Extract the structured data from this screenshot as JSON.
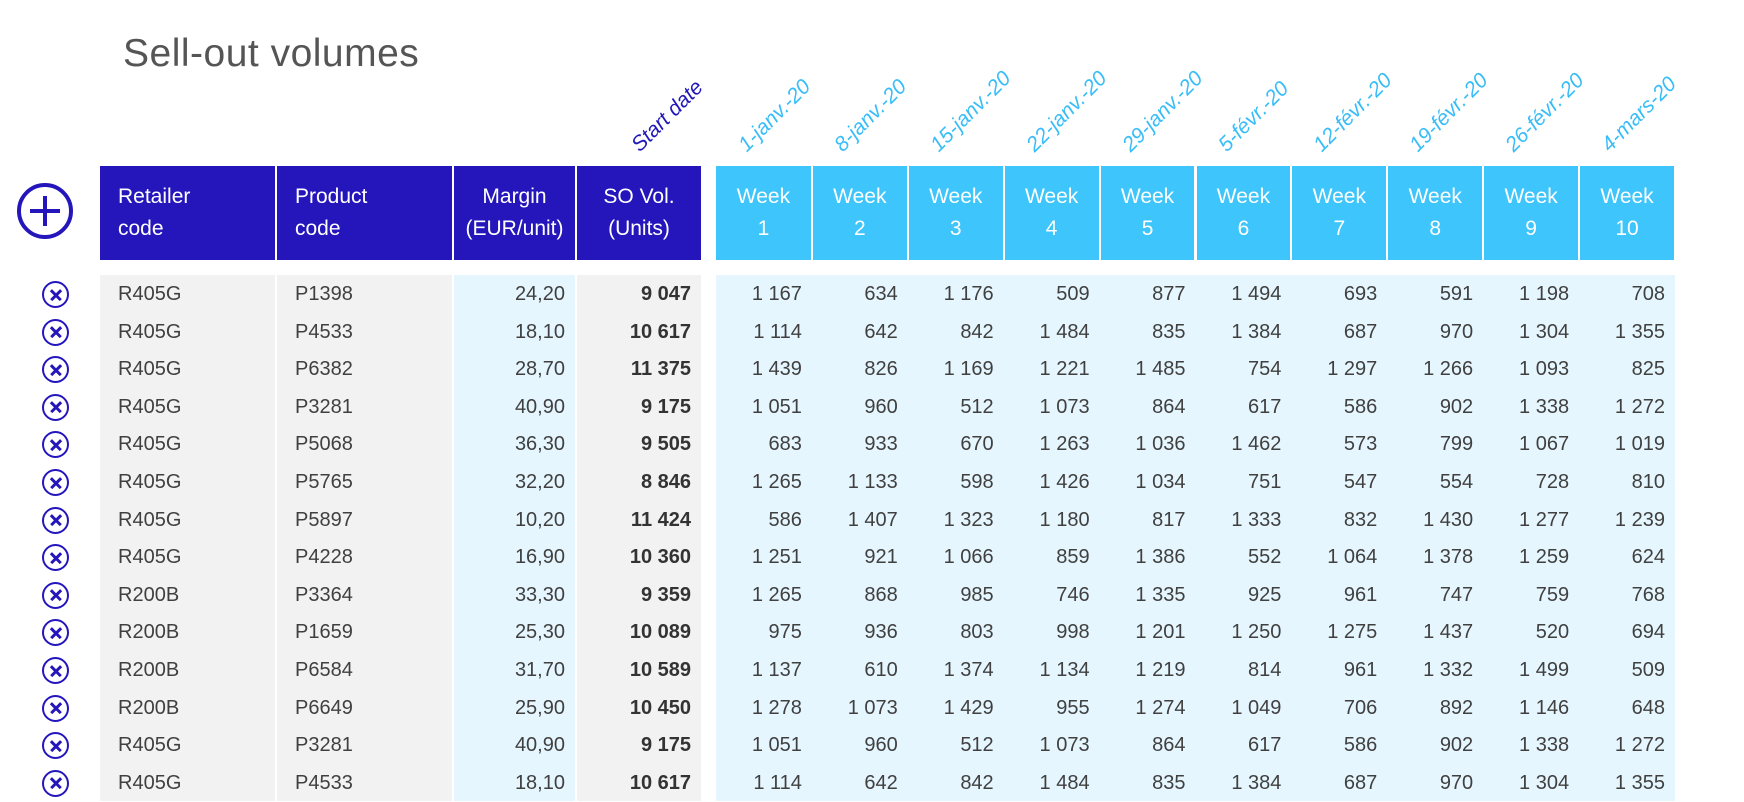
{
  "title": "Sell-out volumes",
  "start_label": "Start date",
  "headers": {
    "retailer": [
      "Retailer",
      "code"
    ],
    "product": [
      "Product",
      "code"
    ],
    "margin": [
      "Margin",
      "(EUR/unit)"
    ],
    "so_vol": [
      "SO Vol.",
      "(Units)"
    ]
  },
  "weeks": [
    {
      "date": "1-janv.-20",
      "label": [
        "Week",
        "1"
      ]
    },
    {
      "date": "8-janv.-20",
      "label": [
        "Week",
        "2"
      ]
    },
    {
      "date": "15-janv.-20",
      "label": [
        "Week",
        "3"
      ]
    },
    {
      "date": "22-janv.-20",
      "label": [
        "Week",
        "4"
      ]
    },
    {
      "date": "29-janv.-20",
      "label": [
        "Week",
        "5"
      ]
    },
    {
      "date": "5-févr.-20",
      "label": [
        "Week",
        "6"
      ]
    },
    {
      "date": "12-févr.-20",
      "label": [
        "Week",
        "7"
      ]
    },
    {
      "date": "19-févr.-20",
      "label": [
        "Week",
        "8"
      ]
    },
    {
      "date": "26-févr.-20",
      "label": [
        "Week",
        "9"
      ]
    },
    {
      "date": "4-mars-20",
      "label": [
        "Week",
        "10"
      ]
    }
  ],
  "rows": [
    {
      "retailer": "R405G",
      "product": "P1398",
      "margin": "24,20",
      "so_vol": "9 047",
      "weeks": [
        "1 167",
        "634",
        "1 176",
        "509",
        "877",
        "1 494",
        "693",
        "591",
        "1 198",
        "708"
      ]
    },
    {
      "retailer": "R405G",
      "product": "P4533",
      "margin": "18,10",
      "so_vol": "10 617",
      "weeks": [
        "1 114",
        "642",
        "842",
        "1 484",
        "835",
        "1 384",
        "687",
        "970",
        "1 304",
        "1 355"
      ]
    },
    {
      "retailer": "R405G",
      "product": "P6382",
      "margin": "28,70",
      "so_vol": "11 375",
      "weeks": [
        "1 439",
        "826",
        "1 169",
        "1 221",
        "1 485",
        "754",
        "1 297",
        "1 266",
        "1 093",
        "825"
      ]
    },
    {
      "retailer": "R405G",
      "product": "P3281",
      "margin": "40,90",
      "so_vol": "9 175",
      "weeks": [
        "1 051",
        "960",
        "512",
        "1 073",
        "864",
        "617",
        "586",
        "902",
        "1 338",
        "1 272"
      ]
    },
    {
      "retailer": "R405G",
      "product": "P5068",
      "margin": "36,30",
      "so_vol": "9 505",
      "weeks": [
        "683",
        "933",
        "670",
        "1 263",
        "1 036",
        "1 462",
        "573",
        "799",
        "1 067",
        "1 019"
      ]
    },
    {
      "retailer": "R405G",
      "product": "P5765",
      "margin": "32,20",
      "so_vol": "8 846",
      "weeks": [
        "1 265",
        "1 133",
        "598",
        "1 426",
        "1 034",
        "751",
        "547",
        "554",
        "728",
        "810"
      ]
    },
    {
      "retailer": "R405G",
      "product": "P5897",
      "margin": "10,20",
      "so_vol": "11 424",
      "weeks": [
        "586",
        "1 407",
        "1 323",
        "1 180",
        "817",
        "1 333",
        "832",
        "1 430",
        "1 277",
        "1 239"
      ]
    },
    {
      "retailer": "R405G",
      "product": "P4228",
      "margin": "16,90",
      "so_vol": "10 360",
      "weeks": [
        "1 251",
        "921",
        "1 066",
        "859",
        "1 386",
        "552",
        "1 064",
        "1 378",
        "1 259",
        "624"
      ]
    },
    {
      "retailer": "R200B",
      "product": "P3364",
      "margin": "33,30",
      "so_vol": "9 359",
      "weeks": [
        "1 265",
        "868",
        "985",
        "746",
        "1 335",
        "925",
        "961",
        "747",
        "759",
        "768"
      ]
    },
    {
      "retailer": "R200B",
      "product": "P1659",
      "margin": "25,30",
      "so_vol": "10 089",
      "weeks": [
        "975",
        "936",
        "803",
        "998",
        "1 201",
        "1 250",
        "1 275",
        "1 437",
        "520",
        "694"
      ]
    },
    {
      "retailer": "R200B",
      "product": "P6584",
      "margin": "31,70",
      "so_vol": "10 589",
      "weeks": [
        "1 137",
        "610",
        "1 374",
        "1 134",
        "1 219",
        "814",
        "961",
        "1 332",
        "1 499",
        "509"
      ]
    },
    {
      "retailer": "R200B",
      "product": "P6649",
      "margin": "25,90",
      "so_vol": "10 450",
      "weeks": [
        "1 278",
        "1 073",
        "1 429",
        "955",
        "1 274",
        "1 049",
        "706",
        "892",
        "1 146",
        "648"
      ]
    },
    {
      "retailer": "R405G",
      "product": "P3281",
      "margin": "40,90",
      "so_vol": "9 175",
      "weeks": [
        "1 051",
        "960",
        "512",
        "1 073",
        "864",
        "617",
        "586",
        "902",
        "1 338",
        "1 272"
      ]
    },
    {
      "retailer": "R405G",
      "product": "P4533",
      "margin": "18,10",
      "so_vol": "10 617",
      "weeks": [
        "1 114",
        "642",
        "842",
        "1 484",
        "835",
        "1 384",
        "687",
        "970",
        "1 304",
        "1 355"
      ]
    }
  ],
  "colors": {
    "dark_header": "#2516bb",
    "light_header": "#3ec5fb",
    "date_text": "#38bdf8",
    "start_text": "#1f17b8"
  },
  "icons": {
    "add": "plus-circle-icon",
    "delete": "x-circle-icon"
  }
}
